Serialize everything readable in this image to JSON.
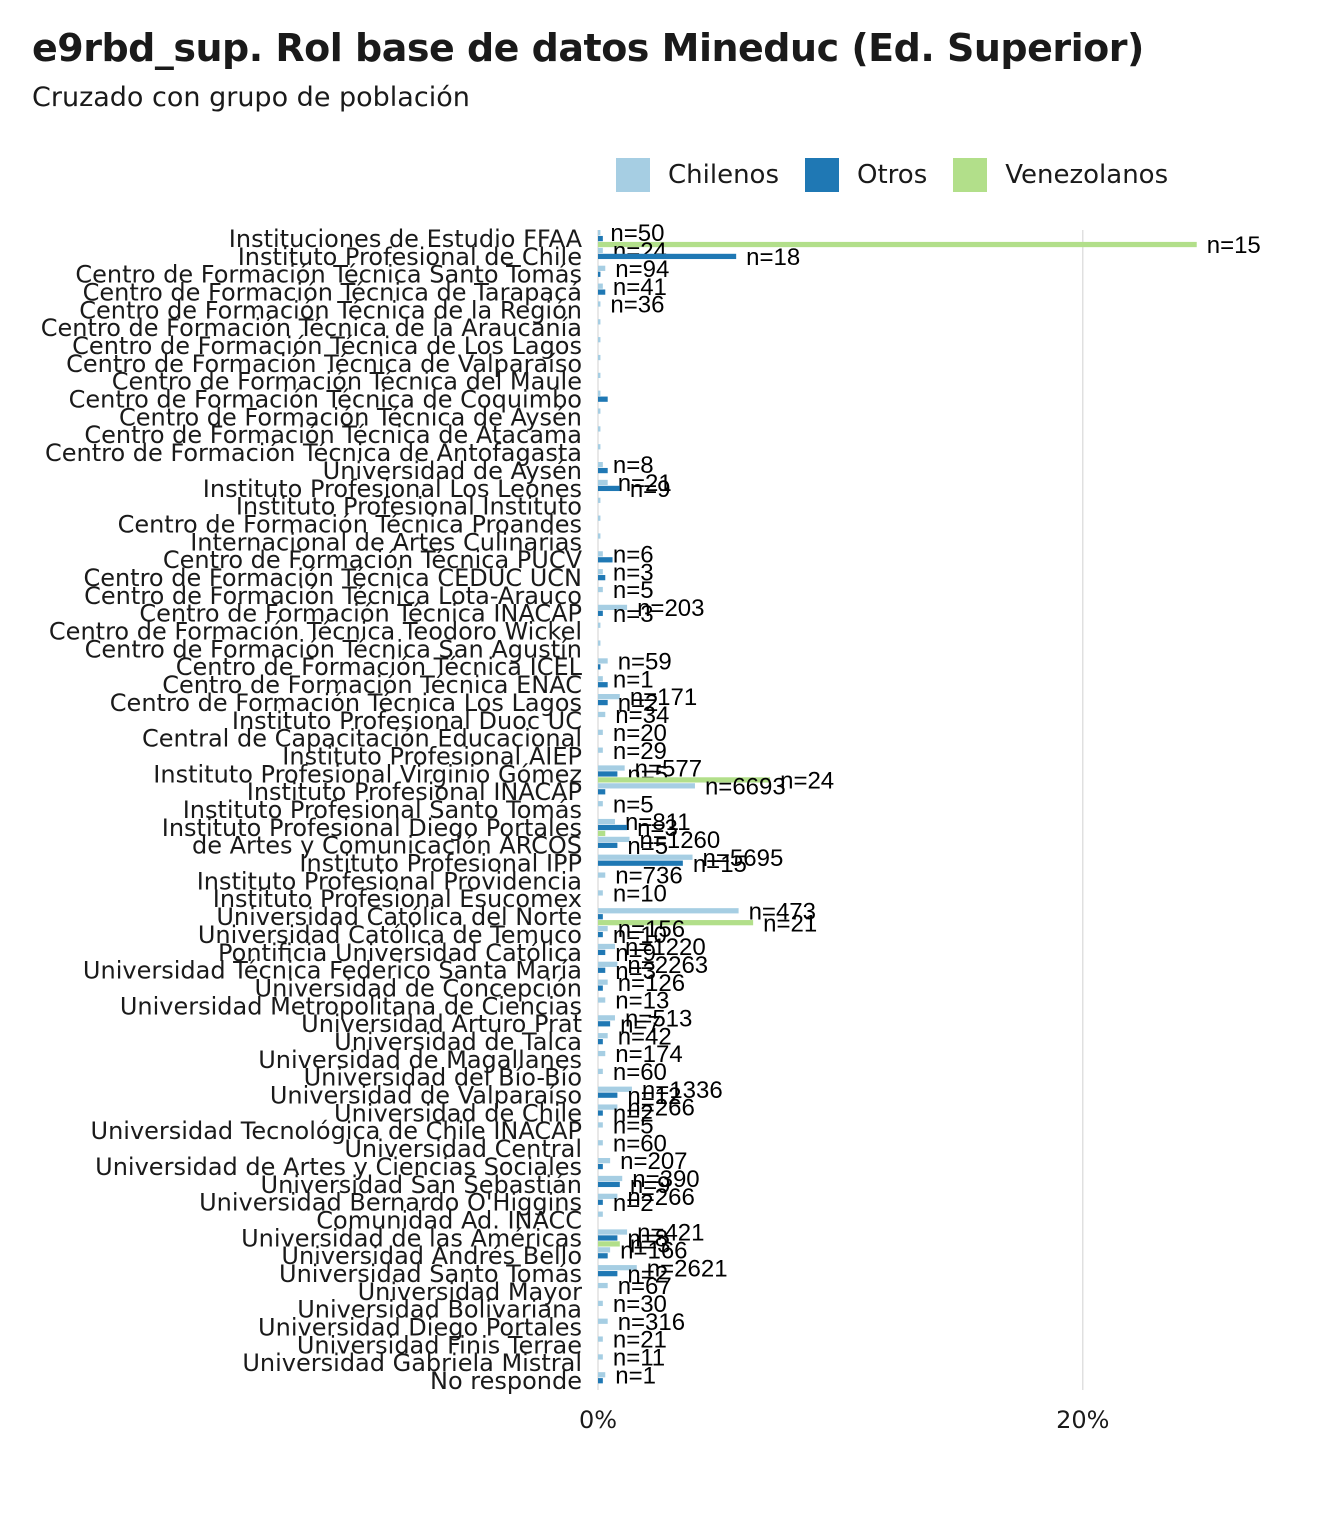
{
  "title": "e9rbd_sup. Rol base de datos Mineduc (Ed. Superior)",
  "subtitle": "Cruzado con grupo de población",
  "legend": [
    {
      "name": "Chilenos",
      "color": "#a6cee3"
    },
    {
      "name": "Otros",
      "color": "#1f78b4"
    },
    {
      "name": "Venezolanos",
      "color": "#b2df8a"
    }
  ],
  "chart_data": {
    "type": "bar",
    "orientation": "horizontal",
    "title": "e9rbd_sup. Rol base de datos Mineduc (Ed. Superior)",
    "subtitle": "Cruzado con grupo de población",
    "xlim": [
      0,
      0.25
    ],
    "x_ticks": [
      {
        "value": 0,
        "label": "0%"
      },
      {
        "value": 0.2,
        "label": "20%"
      }
    ],
    "grid": true,
    "legend_position": "top",
    "series_order": [
      "Chilenos",
      "Otros",
      "Venezolanos"
    ],
    "categories": [
      {
        "label": "Instituciones de Estudio FFAA",
        "values": [
          0.001,
          0.002,
          0.247
        ],
        "n": [
          "n=50",
          "",
          "n=15"
        ]
      },
      {
        "label": "Instituto Profesional de Chile",
        "values": [
          0.002,
          0.057,
          0.0
        ],
        "n": [
          "n=24",
          "n=18",
          ""
        ]
      },
      {
        "label": "Centro de Formación Técnica Santo Tomás",
        "values": [
          0.003,
          0.001,
          0.0
        ],
        "n": [
          "n=94",
          "",
          ""
        ]
      },
      {
        "label": "Centro de Formación Técnica de Tarapacá",
        "values": [
          0.002,
          0.003,
          0.0
        ],
        "n": [
          "n=41",
          "",
          ""
        ]
      },
      {
        "label": "Centro de Formación Técnica de la Región",
        "values": [
          0.001,
          0.0,
          0.0
        ],
        "n": [
          "n=36",
          "",
          ""
        ]
      },
      {
        "label": "Centro de Formación Técnica de la Araucanía",
        "values": [
          0.001,
          0.0,
          0.0
        ],
        "n": [
          "",
          "",
          ""
        ]
      },
      {
        "label": "Centro de Formación Técnica de Los Lagos",
        "values": [
          0.001,
          0.0,
          0.0
        ],
        "n": [
          "",
          "",
          ""
        ]
      },
      {
        "label": "Centro de Formación Técnica de Valparaíso",
        "values": [
          0.001,
          0.0,
          0.0
        ],
        "n": [
          "",
          "",
          ""
        ]
      },
      {
        "label": "Centro de Formación Técnica del Maule",
        "values": [
          0.001,
          0.0,
          0.0
        ],
        "n": [
          "",
          "",
          ""
        ]
      },
      {
        "label": "Centro de Formación Técnica de Coquimbo",
        "values": [
          0.001,
          0.004,
          0.0
        ],
        "n": [
          "",
          "",
          ""
        ]
      },
      {
        "label": "Centro de Formación Técnica de Aysén",
        "values": [
          0.001,
          0.0,
          0.0
        ],
        "n": [
          "",
          "",
          ""
        ]
      },
      {
        "label": "Centro de Formación Técnica de Atacama",
        "values": [
          0.001,
          0.0,
          0.0
        ],
        "n": [
          "",
          "",
          ""
        ]
      },
      {
        "label": "Centro de Formación Técnica de Antofagasta",
        "values": [
          0.001,
          0.0,
          0.0
        ],
        "n": [
          "",
          "",
          ""
        ]
      },
      {
        "label": "Universidad de Aysén",
        "values": [
          0.002,
          0.004,
          0.0
        ],
        "n": [
          "n=8",
          "",
          ""
        ]
      },
      {
        "label": "Instituto Profesional Los Leones",
        "values": [
          0.004,
          0.009,
          0.0
        ],
        "n": [
          "n=21",
          "n=9",
          ""
        ]
      },
      {
        "label": "Instituto Profesional Instituto",
        "values": [
          0.001,
          0.0,
          0.0
        ],
        "n": [
          "",
          "",
          ""
        ]
      },
      {
        "label": "Centro de Formación Técnica Proandes",
        "values": [
          0.001,
          0.0,
          0.0
        ],
        "n": [
          "",
          "",
          ""
        ]
      },
      {
        "label": "Internacional de Artes Culinarias",
        "values": [
          0.001,
          0.0,
          0.0
        ],
        "n": [
          "",
          "",
          ""
        ]
      },
      {
        "label": "Centro de Formación Técnica PUCV",
        "values": [
          0.002,
          0.006,
          0.0
        ],
        "n": [
          "n=6",
          "",
          ""
        ]
      },
      {
        "label": "Centro de Formación Técnica CEDUC UCN",
        "values": [
          0.002,
          0.003,
          0.0
        ],
        "n": [
          "n=3",
          "",
          ""
        ]
      },
      {
        "label": "Centro de Formación Técnica Lota-Arauco",
        "values": [
          0.002,
          0.0,
          0.0
        ],
        "n": [
          "n=5",
          "",
          ""
        ]
      },
      {
        "label": "Centro de Formación Técnica INACAP",
        "values": [
          0.012,
          0.002,
          0.0
        ],
        "n": [
          "n=203",
          "n=3",
          ""
        ]
      },
      {
        "label": "Centro de Formación Técnica Teodoro Wickel",
        "values": [
          0.001,
          0.0,
          0.0
        ],
        "n": [
          "",
          "",
          ""
        ]
      },
      {
        "label": "Centro de Formación Técnica San Agustín",
        "values": [
          0.001,
          0.0,
          0.0
        ],
        "n": [
          "",
          "",
          ""
        ]
      },
      {
        "label": "Centro de Formación Técnica ICEL",
        "values": [
          0.004,
          0.001,
          0.0
        ],
        "n": [
          "n=59",
          "",
          ""
        ]
      },
      {
        "label": "Centro de Formación Técnica ENAC",
        "values": [
          0.002,
          0.004,
          0.0
        ],
        "n": [
          "n=1",
          "",
          ""
        ]
      },
      {
        "label": "Centro de Formación Técnica Los Lagos",
        "values": [
          0.009,
          0.004,
          0.0
        ],
        "n": [
          "n=171",
          "n=2",
          ""
        ]
      },
      {
        "label": "Instituto Profesional Duoc UC",
        "values": [
          0.003,
          0.0,
          0.0
        ],
        "n": [
          "n=34",
          "",
          ""
        ]
      },
      {
        "label": "Central de Capacitación Educacional",
        "values": [
          0.002,
          0.0,
          0.0
        ],
        "n": [
          "n=20",
          "",
          ""
        ]
      },
      {
        "label": "Instituto Profesional AIEP",
        "values": [
          0.002,
          0.0,
          0.0
        ],
        "n": [
          "n=29",
          "",
          ""
        ]
      },
      {
        "label": "Instituto Profesional Virginio Gómez",
        "values": [
          0.011,
          0.008,
          0.071
        ],
        "n": [
          "n=577",
          "n=5",
          "n=24"
        ]
      },
      {
        "label": "Instituto Profesional INACAP",
        "values": [
          0.04,
          0.003,
          0.0
        ],
        "n": [
          "n=6693",
          "",
          ""
        ]
      },
      {
        "label": "Instituto Profesional Santo Tomás",
        "values": [
          0.002,
          0.0,
          0.0
        ],
        "n": [
          "n=5",
          "",
          ""
        ]
      },
      {
        "label": "Instituto Profesional Diego Portales",
        "values": [
          0.007,
          0.012,
          0.003
        ],
        "n": [
          "n=811",
          "n=3",
          ""
        ]
      },
      {
        "label": "de Artes y Comunicación ARCOS",
        "values": [
          0.013,
          0.008,
          0.0
        ],
        "n": [
          "n=1260",
          "n=5",
          ""
        ]
      },
      {
        "label": "Instituto Profesional IPP",
        "values": [
          0.039,
          0.035,
          0.0
        ],
        "n": [
          "n=5695",
          "n=15",
          ""
        ]
      },
      {
        "label": "Instituto Profesional Providencia",
        "values": [
          0.003,
          0.0,
          0.0
        ],
        "n": [
          "n=736",
          "",
          ""
        ]
      },
      {
        "label": "Instituto Profesional Esucomex",
        "values": [
          0.002,
          0.0,
          0.0
        ],
        "n": [
          "n=10",
          "",
          ""
        ]
      },
      {
        "label": "Universidad Católica del Norte",
        "values": [
          0.058,
          0.002,
          0.064
        ],
        "n": [
          "n=473",
          "",
          "n=21"
        ]
      },
      {
        "label": "Universidad Católica de Temuco",
        "values": [
          0.004,
          0.002,
          0.0
        ],
        "n": [
          "n=156",
          "n=10",
          ""
        ]
      },
      {
        "label": "Pontificia Universidad Católica",
        "values": [
          0.007,
          0.003,
          0.0
        ],
        "n": [
          "n=1220",
          "n=9",
          ""
        ]
      },
      {
        "label": "Universidad Técnica Federico Santa María",
        "values": [
          0.008,
          0.003,
          0.0
        ],
        "n": [
          "n=2263",
          "n=3",
          ""
        ]
      },
      {
        "label": "Universidad de Concepción",
        "values": [
          0.004,
          0.002,
          0.0
        ],
        "n": [
          "n=126",
          "",
          ""
        ]
      },
      {
        "label": "Universidad Metropolitana de Ciencias",
        "values": [
          0.003,
          0.0,
          0.0
        ],
        "n": [
          "n=13",
          "",
          ""
        ]
      },
      {
        "label": "Universidad Arturo Prat",
        "values": [
          0.007,
          0.005,
          0.0
        ],
        "n": [
          "n=513",
          "n=7",
          ""
        ]
      },
      {
        "label": "Universidad de Talca",
        "values": [
          0.004,
          0.002,
          0.0
        ],
        "n": [
          "n=42",
          "",
          ""
        ]
      },
      {
        "label": "Universidad de Magallanes",
        "values": [
          0.003,
          0.0,
          0.0
        ],
        "n": [
          "n=174",
          "",
          ""
        ]
      },
      {
        "label": "Universidad del Bío-Bío",
        "values": [
          0.002,
          0.0,
          0.0
        ],
        "n": [
          "n=60",
          "",
          ""
        ]
      },
      {
        "label": "Universidad de Valparaíso",
        "values": [
          0.014,
          0.008,
          0.0
        ],
        "n": [
          "n=1336",
          "n=12",
          ""
        ]
      },
      {
        "label": "Universidad de Chile",
        "values": [
          0.008,
          0.002,
          0.0
        ],
        "n": [
          "n=266",
          "n=2",
          ""
        ]
      },
      {
        "label": "Universidad Tecnológica de Chile INACAP",
        "values": [
          0.002,
          0.0,
          0.0
        ],
        "n": [
          "n=5",
          "",
          ""
        ]
      },
      {
        "label": "Universidad Central",
        "values": [
          0.002,
          0.0,
          0.0
        ],
        "n": [
          "n=60",
          "",
          ""
        ]
      },
      {
        "label": "Universidad de Artes y Ciencias Sociales",
        "values": [
          0.005,
          0.002,
          0.0
        ],
        "n": [
          "n=207",
          "",
          ""
        ]
      },
      {
        "label": "Universidad San Sebastián",
        "values": [
          0.01,
          0.009,
          0.0
        ],
        "n": [
          "n=390",
          "n=9",
          ""
        ]
      },
      {
        "label": "Universidad Bernardo O'Higgins",
        "values": [
          0.008,
          0.002,
          0.0
        ],
        "n": [
          "n=266",
          "n=2",
          ""
        ]
      },
      {
        "label": "Comunidad Ad. INACC",
        "values": [
          0.002,
          0.0,
          0.0
        ],
        "n": [
          "",
          "",
          ""
        ]
      },
      {
        "label": "Universidad de las Américas",
        "values": [
          0.012,
          0.008,
          0.009
        ],
        "n": [
          "n=421",
          "n=8",
          "n=3"
        ]
      },
      {
        "label": "Universidad Andrés Bello",
        "values": [
          0.005,
          0.004,
          0.0
        ],
        "n": [
          "n=166",
          "",
          ""
        ]
      },
      {
        "label": "Universidad Santo Tomás",
        "values": [
          0.016,
          0.008,
          0.0
        ],
        "n": [
          "n=2621",
          "n=2",
          ""
        ]
      },
      {
        "label": "Universidad Mayor",
        "values": [
          0.004,
          0.0,
          0.0
        ],
        "n": [
          "n=67",
          "",
          ""
        ]
      },
      {
        "label": "Universidad Bolivariana",
        "values": [
          0.002,
          0.0,
          0.0
        ],
        "n": [
          "n=30",
          "",
          ""
        ]
      },
      {
        "label": "Universidad Diego Portales",
        "values": [
          0.004,
          0.0,
          0.0
        ],
        "n": [
          "n=316",
          "",
          ""
        ]
      },
      {
        "label": "Universidad Finis Terrae",
        "values": [
          0.002,
          0.0,
          0.0
        ],
        "n": [
          "n=21",
          "",
          ""
        ]
      },
      {
        "label": "Universidad Gabriela Mistral",
        "values": [
          0.002,
          0.0,
          0.0
        ],
        "n": [
          "n=11",
          "",
          ""
        ]
      },
      {
        "label": "No responde",
        "values": [
          0.003,
          0.002,
          0.0
        ],
        "n": [
          "n=1",
          "",
          ""
        ]
      }
    ]
  }
}
